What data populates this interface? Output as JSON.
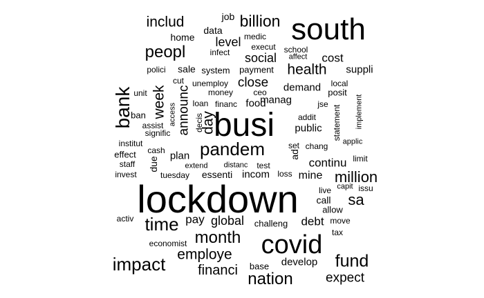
{
  "word_cloud": {
    "words": [
      {
        "text": "lockdown",
        "rank": 1
      },
      {
        "text": "busi",
        "rank": 2
      },
      {
        "text": "south",
        "rank": 3
      },
      {
        "text": "covid",
        "rank": 4
      },
      {
        "text": "pandem",
        "rank": 5
      },
      {
        "text": "impact",
        "rank": 6
      },
      {
        "text": "bank",
        "rank": 7
      },
      {
        "text": "time",
        "rank": 8
      },
      {
        "text": "nation",
        "rank": 9
      },
      {
        "text": "fund",
        "rank": 10
      },
      {
        "text": "month",
        "rank": 11
      },
      {
        "text": "peopl",
        "rank": 12
      },
      {
        "text": "billion",
        "rank": 13
      },
      {
        "text": "million",
        "rank": 14
      },
      {
        "text": "health",
        "rank": 15
      },
      {
        "text": "employe",
        "rank": 16
      },
      {
        "text": "financi",
        "rank": 17
      },
      {
        "text": "expect",
        "rank": 18
      },
      {
        "text": "sa",
        "rank": 19
      },
      {
        "text": "includ",
        "rank": 20
      },
      {
        "text": "week",
        "rank": 21
      },
      {
        "text": "announc",
        "rank": 22
      },
      {
        "text": "close",
        "rank": 23
      },
      {
        "text": "social",
        "rank": 24
      },
      {
        "text": "day",
        "rank": 25
      },
      {
        "text": "global",
        "rank": 26
      },
      {
        "text": "level",
        "rank": 27
      },
      {
        "text": "cost",
        "rank": 28
      },
      {
        "text": "debt",
        "rank": 29
      },
      {
        "text": "develop",
        "rank": 30
      },
      {
        "text": "continu",
        "rank": 31
      },
      {
        "text": "suppli",
        "rank": 32
      },
      {
        "text": "pay",
        "rank": 33
      },
      {
        "text": "mine",
        "rank": 34
      },
      {
        "text": "public",
        "rank": 35
      },
      {
        "text": "demand",
        "rank": 36
      },
      {
        "text": "manag",
        "rank": 37
      },
      {
        "text": "food",
        "rank": 38
      },
      {
        "text": "plan",
        "rank": 39
      },
      {
        "text": "essenti",
        "rank": 40
      },
      {
        "text": "incom",
        "rank": 41
      },
      {
        "text": "sale",
        "rank": 42
      },
      {
        "text": "data",
        "rank": 43
      },
      {
        "text": "job",
        "rank": 44
      },
      {
        "text": "home",
        "rank": 45
      },
      {
        "text": "due",
        "rank": 46
      },
      {
        "text": "ad",
        "rank": 47
      },
      {
        "text": "challeng",
        "rank": 48
      },
      {
        "text": "call",
        "rank": 49
      },
      {
        "text": "system",
        "rank": 50
      },
      {
        "text": "payment",
        "rank": 51
      },
      {
        "text": "polici",
        "rank": 52
      },
      {
        "text": "base",
        "rank": 53
      },
      {
        "text": "medic",
        "rank": 54
      },
      {
        "text": "execut",
        "rank": 55
      },
      {
        "text": "infect",
        "rank": 56
      },
      {
        "text": "school",
        "rank": 57
      },
      {
        "text": "affect",
        "rank": 58
      },
      {
        "text": "local",
        "rank": 59
      },
      {
        "text": "posit",
        "rank": 60
      },
      {
        "text": "cut",
        "rank": 61
      },
      {
        "text": "unemploy",
        "rank": 62
      },
      {
        "text": "money",
        "rank": 63
      },
      {
        "text": "ceo",
        "rank": 64
      },
      {
        "text": "loan",
        "rank": 65
      },
      {
        "text": "financ",
        "rank": 66
      },
      {
        "text": "jse",
        "rank": 67
      },
      {
        "text": "unit",
        "rank": 68
      },
      {
        "text": "ban",
        "rank": 69
      },
      {
        "text": "assist",
        "rank": 70
      },
      {
        "text": "signific",
        "rank": 71
      },
      {
        "text": "access",
        "rank": 72
      },
      {
        "text": "decis",
        "rank": 73
      },
      {
        "text": "addit",
        "rank": 74
      },
      {
        "text": "statement",
        "rank": 75
      },
      {
        "text": "implement",
        "rank": 76
      },
      {
        "text": "institut",
        "rank": 77
      },
      {
        "text": "cash",
        "rank": 78
      },
      {
        "text": "effect",
        "rank": 79
      },
      {
        "text": "set",
        "rank": 80
      },
      {
        "text": "chang",
        "rank": 81
      },
      {
        "text": "applic",
        "rank": 82
      },
      {
        "text": "staff",
        "rank": 83
      },
      {
        "text": "extend",
        "rank": 84
      },
      {
        "text": "distanc",
        "rank": 85
      },
      {
        "text": "test",
        "rank": 86
      },
      {
        "text": "limit",
        "rank": 87
      },
      {
        "text": "invest",
        "rank": 88
      },
      {
        "text": "tuesday",
        "rank": 89
      },
      {
        "text": "loss",
        "rank": 90
      },
      {
        "text": "live",
        "rank": 91
      },
      {
        "text": "capit",
        "rank": 92
      },
      {
        "text": "issu",
        "rank": 93
      },
      {
        "text": "allow",
        "rank": 94
      },
      {
        "text": "activ",
        "rank": 95
      },
      {
        "text": "move",
        "rank": 96
      },
      {
        "text": "tax",
        "rank": 97
      },
      {
        "text": "economist",
        "rank": 98
      }
    ]
  }
}
